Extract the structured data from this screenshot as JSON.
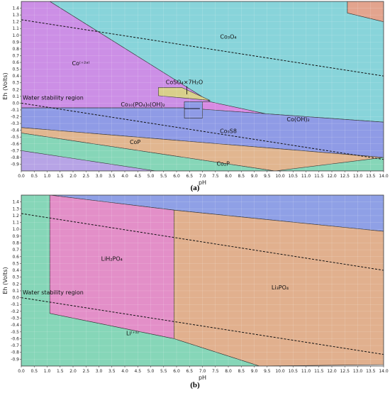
{
  "chart_data": [
    {
      "type": "area",
      "panel_label": "(a)",
      "xlabel": "pH",
      "ylabel": "Eh (Volts)",
      "xlim": [
        0,
        14
      ],
      "ylim": [
        -1.0,
        1.5
      ],
      "x_ticks": [
        "0.0",
        "0.5",
        "1.0",
        "1.5",
        "2.0",
        "2.5",
        "3.0",
        "3.5",
        "4.0",
        "4.5",
        "5.0",
        "5.5",
        "6.0",
        "6.5",
        "7.0",
        "7.5",
        "8.0",
        "8.5",
        "9.0",
        "9.5",
        "10.0",
        "10.5",
        "11.0",
        "11.5",
        "12.0",
        "12.5",
        "13.0",
        "13.5",
        "14.0"
      ],
      "y_ticks": [
        "1.4",
        "1.3",
        "1.2",
        "1.1",
        "1.0",
        "0.9",
        "0.8",
        "0.7",
        "0.6",
        "0.5",
        "0.4",
        "0.3",
        "0.2",
        "0.1",
        "0.0",
        "-0.1",
        "-0.2",
        "-0.3",
        "-0.4",
        "-0.5",
        "-0.6",
        "-0.7",
        "-0.8",
        "-0.9"
      ],
      "water_stability_label": "Water stability region",
      "water_lines": [
        {
          "x": [
            0,
            14
          ],
          "y": [
            1.23,
            0.4
          ]
        },
        {
          "x": [
            0,
            14
          ],
          "y": [
            0.0,
            -0.83
          ]
        }
      ],
      "regions": [
        {
          "label": "Co₃O₄",
          "color": "#88d4da",
          "points": [
            [
              0,
              1.5
            ],
            [
              1.1,
              1.5
            ],
            [
              7.3,
              0.02
            ],
            [
              14,
              -0.53
            ],
            [
              14,
              1.2
            ],
            [
              12.6,
              1.33
            ],
            [
              12.6,
              1.5
            ],
            [
              0,
              1.5
            ]
          ],
          "label_at": [
            8.0,
            0.95
          ]
        },
        {
          "label": "Co⁽⁺²ᵃ⁾",
          "color": "#cc8fe6",
          "points": [
            [
              0,
              1.5
            ],
            [
              1.1,
              1.5
            ],
            [
              7.3,
              0.02
            ],
            [
              6.3,
              0.02
            ],
            [
              6.3,
              -0.07
            ],
            [
              0,
              -0.07
            ]
          ],
          "label_at": [
            2.3,
            0.56
          ]
        },
        {
          "label": "",
          "color": "#e3a48e",
          "points": [
            [
              12.6,
              1.5
            ],
            [
              14,
              1.5
            ],
            [
              14,
              1.2
            ],
            [
              12.6,
              1.33
            ]
          ]
        },
        {
          "label": "Co(OH)₂",
          "color": "#d88ae2",
          "points": [
            [
              7.3,
              0.02
            ],
            [
              14,
              -0.53
            ],
            [
              14,
              -0.28
            ],
            [
              7.0,
              -0.09
            ],
            [
              7.0,
              0.02
            ]
          ],
          "label_at": [
            10.7,
            -0.27
          ]
        },
        {
          "label": "Co₁₀(PO₄)₆(OH)₂",
          "color": "#8f9be6",
          "points": [
            [
              6.3,
              0.02
            ],
            [
              7.0,
              0.02
            ],
            [
              7.0,
              -0.22
            ],
            [
              6.3,
              -0.22
            ]
          ],
          "label_at": [
            4.7,
            -0.05
          ]
        },
        {
          "label": "Co₉S8",
          "color": "#8f9be6",
          "points": [
            [
              0,
              -0.07
            ],
            [
              6.3,
              -0.07
            ],
            [
              6.3,
              -0.22
            ],
            [
              7.0,
              -0.22
            ],
            [
              7.0,
              -0.09
            ],
            [
              14,
              -0.28
            ],
            [
              14,
              -0.8
            ],
            [
              0,
              -0.36
            ]
          ],
          "label_at": [
            8.0,
            -0.44
          ]
        },
        {
          "label": "CoP",
          "color": "#e1b690",
          "points": [
            [
              0,
              -0.36
            ],
            [
              14,
              -0.8
            ],
            [
              14,
              -1.0
            ],
            [
              9.8,
              -1.0
            ],
            [
              0,
              -0.44
            ]
          ],
          "label_at": [
            4.4,
            -0.6
          ]
        },
        {
          "label": "Co₂P",
          "color": "#86d6b8",
          "points": [
            [
              0,
              -0.44
            ],
            [
              9.8,
              -1.0
            ],
            [
              0,
              -1.0
            ]
          ],
          "label_at": [
            7.8,
            -0.92
          ]
        },
        {
          "label": "",
          "color": "#86d6b8",
          "points": [
            [
              9.8,
              -1.0
            ],
            [
              14,
              -0.8
            ],
            [
              14,
              -1.0
            ]
          ]
        },
        {
          "label": "",
          "color": "#b7a4e6",
          "points": [
            [
              0,
              -0.7
            ],
            [
              5.2,
              -1.0
            ],
            [
              0,
              -1.0
            ]
          ]
        },
        {
          "label": "CoSO₄×7H₂O",
          "color": "#d8cf8a",
          "points": [
            [
              5.3,
              0.23
            ],
            [
              6.2,
              0.23
            ],
            [
              7.3,
              0.04
            ],
            [
              5.3,
              0.11
            ]
          ],
          "label_at": [
            6.3,
            0.28
          ]
        }
      ]
    },
    {
      "type": "area",
      "panel_label": "(b)",
      "xlabel": "pH",
      "ylabel": "Eh (Volts)",
      "xlim": [
        0,
        14
      ],
      "ylim": [
        -1.0,
        1.5
      ],
      "x_ticks": [
        "0.0",
        "0.5",
        "1.0",
        "1.5",
        "2.0",
        "2.5",
        "3.0",
        "3.5",
        "4.0",
        "4.5",
        "5.0",
        "5.5",
        "6.0",
        "6.5",
        "7.0",
        "7.5",
        "8.0",
        "8.5",
        "9.0",
        "9.5",
        "10.0",
        "10.5",
        "11.0",
        "11.5",
        "12.0",
        "12.5",
        "13.0",
        "13.5",
        "14.0"
      ],
      "y_ticks": [
        "1.4",
        "1.3",
        "1.2",
        "1.1",
        "1.0",
        "0.9",
        "0.8",
        "0.7",
        "0.6",
        "0.5",
        "0.4",
        "0.3",
        "0.2",
        "0.1",
        "0.0",
        "-0.1",
        "-0.2",
        "-0.3",
        "-0.4",
        "-0.5",
        "-0.6",
        "-0.7",
        "-0.8",
        "-0.9"
      ],
      "water_stability_label": "Water stability region",
      "water_lines": [
        {
          "x": [
            0,
            14
          ],
          "y": [
            1.23,
            0.4
          ]
        },
        {
          "x": [
            0,
            14
          ],
          "y": [
            0.0,
            -0.83
          ]
        }
      ],
      "regions": [
        {
          "label": "",
          "color": "#8fa0e6",
          "points": [
            [
              1.1,
              1.5
            ],
            [
              14,
              1.5
            ],
            [
              14,
              0.97
            ],
            [
              5.9,
              1.28
            ],
            [
              1.1,
              1.5
            ]
          ]
        },
        {
          "label": "LiH₂PO₄",
          "color": "#e38fc8",
          "points": [
            [
              1.1,
              1.5
            ],
            [
              5.9,
              1.28
            ],
            [
              5.9,
              -0.6
            ],
            [
              1.1,
              -0.23
            ]
          ],
          "label_at": [
            3.5,
            0.54
          ]
        },
        {
          "label": "Li₃PO₄",
          "color": "#e1b08e",
          "points": [
            [
              5.9,
              1.28
            ],
            [
              14,
              0.97
            ],
            [
              14,
              -0.98
            ],
            [
              9.2,
              -1.0
            ],
            [
              5.9,
              -0.6
            ]
          ],
          "label_at": [
            10.0,
            0.12
          ]
        },
        {
          "label": "Li⁽⁺ᵃ⁾",
          "color": "#86d6b8",
          "points": [
            [
              0,
              1.5
            ],
            [
              1.1,
              1.5
            ],
            [
              1.1,
              -0.23
            ],
            [
              5.9,
              -0.6
            ],
            [
              9.2,
              -1.0
            ],
            [
              0,
              -1.0
            ]
          ],
          "label_at": [
            4.3,
            -0.55
          ]
        }
      ]
    }
  ]
}
